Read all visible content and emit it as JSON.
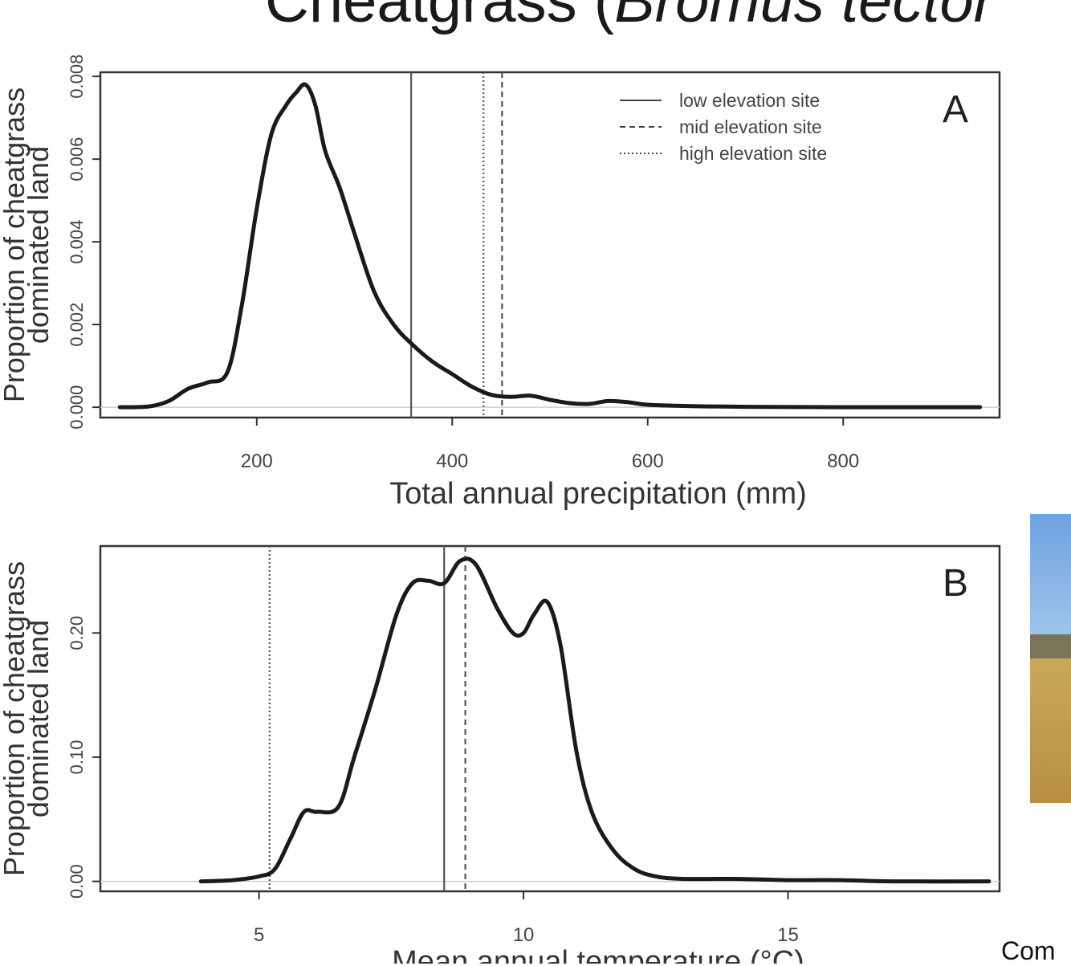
{
  "slide": {
    "title_plain": "Cheatgrass (",
    "title_italic": "Bromus tector",
    "caption": "Com"
  },
  "chart_data": [
    {
      "type": "line",
      "panel_label": "A",
      "xlabel": "Total annual precipitation (mm)",
      "ylabel_line1": "Proportion of cheatgrass",
      "ylabel_line2": "dominated land",
      "xlim": [
        40,
        960
      ],
      "ylim": [
        -0.00025,
        0.0081
      ],
      "xticks": [
        200,
        400,
        600,
        800
      ],
      "xtick_labels": [
        "200",
        "400",
        "600",
        "800"
      ],
      "yticks": [
        0,
        0.002,
        0.004,
        0.006,
        0.008
      ],
      "ytick_labels": [
        "0.000",
        "0.002",
        "0.004",
        "0.006",
        "0.008"
      ],
      "legend": {
        "placement": "top-right",
        "entries": [
          {
            "label": "low elevation site",
            "dash": "solid"
          },
          {
            "label": "mid elevation site",
            "dash": "dashed"
          },
          {
            "label": "high elevation site",
            "dash": "dotted"
          }
        ]
      },
      "vlines": [
        {
          "name": "low elevation site",
          "x": 358,
          "dash": "solid"
        },
        {
          "name": "high elevation site",
          "x": 432,
          "dash": "dotted"
        },
        {
          "name": "mid elevation site",
          "x": 451,
          "dash": "dashed"
        }
      ],
      "series": [
        {
          "x": [
            60,
            90,
            110,
            130,
            150,
            170,
            185,
            200,
            215,
            230,
            240,
            250,
            260,
            270,
            285,
            300,
            320,
            340,
            360,
            380,
            400,
            420,
            440,
            460,
            480,
            500,
            520,
            540,
            560,
            580,
            600,
            640,
            700,
            800,
            940
          ],
          "y": [
            0.0,
            2e-05,
            0.00015,
            0.00045,
            0.0006,
            0.00085,
            0.0025,
            0.0048,
            0.0066,
            0.0073,
            0.0076,
            0.0078,
            0.0073,
            0.0062,
            0.0053,
            0.0042,
            0.0028,
            0.002,
            0.0015,
            0.0011,
            0.0008,
            0.0005,
            0.0003,
            0.00025,
            0.00028,
            0.00018,
            0.0001,
            8e-05,
            0.00015,
            0.00012,
            6e-05,
            3e-05,
            1e-05,
            0.0,
            0.0
          ]
        }
      ]
    },
    {
      "type": "line",
      "panel_label": "B",
      "xlabel": "Mean annual temperature (°C)",
      "ylabel_line1": "Proportion of cheatgrass",
      "ylabel_line2": "dominated land",
      "xlim": [
        2,
        19
      ],
      "ylim": [
        -0.008,
        0.27
      ],
      "xticks": [
        5,
        10,
        15
      ],
      "xtick_labels": [
        "5",
        "10",
        "15"
      ],
      "yticks": [
        0.0,
        0.1,
        0.2
      ],
      "ytick_labels": [
        "0.00",
        "0.10",
        "0.20"
      ],
      "vlines": [
        {
          "name": "high elevation site",
          "x": 5.2,
          "dash": "dotted"
        },
        {
          "name": "low elevation site",
          "x": 8.5,
          "dash": "solid"
        },
        {
          "name": "mid elevation site",
          "x": 8.9,
          "dash": "dashed"
        }
      ],
      "series": [
        {
          "x": [
            3.9,
            4.5,
            5.0,
            5.3,
            5.6,
            5.85,
            6.1,
            6.5,
            6.8,
            7.2,
            7.6,
            7.9,
            8.2,
            8.5,
            8.8,
            9.1,
            9.5,
            9.8,
            10.0,
            10.2,
            10.45,
            10.7,
            11.0,
            11.3,
            11.7,
            12.1,
            12.5,
            13.0,
            14.0,
            15.0,
            16.0,
            17.0,
            18.8
          ],
          "y": [
            0.0,
            0.001,
            0.004,
            0.01,
            0.035,
            0.056,
            0.056,
            0.06,
            0.1,
            0.155,
            0.215,
            0.24,
            0.242,
            0.24,
            0.258,
            0.255,
            0.22,
            0.2,
            0.2,
            0.215,
            0.225,
            0.19,
            0.105,
            0.055,
            0.025,
            0.01,
            0.004,
            0.002,
            0.002,
            0.001,
            0.001,
            0.0,
            0.0
          ]
        }
      ]
    }
  ]
}
